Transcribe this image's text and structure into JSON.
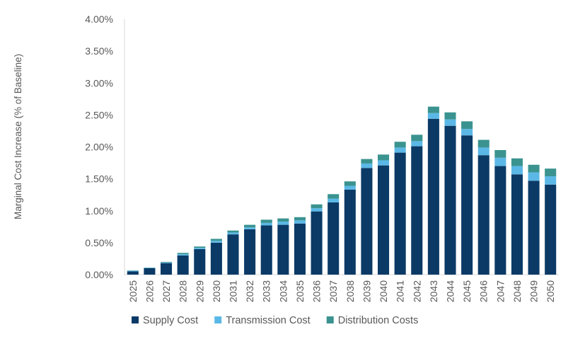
{
  "chart_data": {
    "type": "bar",
    "stacked": true,
    "title": "",
    "xlabel": "",
    "ylabel": "Marginal Cost Increase (% of Baseline)",
    "ylim": [
      0,
      4.0
    ],
    "yticks": [
      "0.00%",
      "0.50%",
      "1.00%",
      "1.50%",
      "2.00%",
      "2.50%",
      "3.00%",
      "3.50%",
      "4.00%"
    ],
    "grid": false,
    "legend_position": "bottom",
    "categories": [
      "2025",
      "2026",
      "2027",
      "2028",
      "2029",
      "2030",
      "2031",
      "2032",
      "2033",
      "2034",
      "2035",
      "2036",
      "2037",
      "2038",
      "2039",
      "2040",
      "2041",
      "2042",
      "2043",
      "2044",
      "2045",
      "2046",
      "2047",
      "2048",
      "2049",
      "2050"
    ],
    "series": [
      {
        "name": "Supply Cost",
        "color": "#0b3a66",
        "values": [
          0.05,
          0.1,
          0.18,
          0.3,
          0.4,
          0.5,
          0.63,
          0.71,
          0.77,
          0.78,
          0.8,
          0.99,
          1.13,
          1.33,
          1.67,
          1.71,
          1.91,
          2.01,
          2.44,
          2.33,
          2.18,
          1.87,
          1.7,
          1.57,
          1.47,
          1.41
        ]
      },
      {
        "name": "Transmission Cost",
        "color": "#5bb8e6",
        "values": [
          0.01,
          0.005,
          0.01,
          0.02,
          0.02,
          0.03,
          0.03,
          0.03,
          0.04,
          0.05,
          0.05,
          0.05,
          0.06,
          0.06,
          0.07,
          0.08,
          0.08,
          0.08,
          0.09,
          0.1,
          0.1,
          0.12,
          0.13,
          0.13,
          0.13,
          0.13
        ]
      },
      {
        "name": "Distribution Costs",
        "color": "#3a938f",
        "values": [
          0.005,
          0.005,
          0.01,
          0.02,
          0.02,
          0.03,
          0.03,
          0.04,
          0.05,
          0.05,
          0.05,
          0.06,
          0.07,
          0.07,
          0.07,
          0.09,
          0.09,
          0.1,
          0.1,
          0.11,
          0.12,
          0.12,
          0.12,
          0.12,
          0.12,
          0.12
        ]
      }
    ]
  }
}
